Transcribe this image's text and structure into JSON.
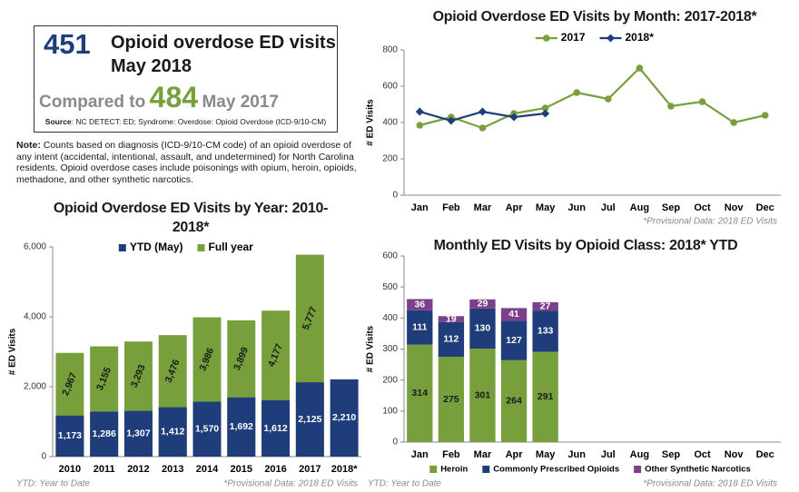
{
  "header": {
    "count": "451",
    "headline": "Opioid overdose ED visits",
    "period": "May 2018",
    "compared": "Compared to",
    "prior_count": "484",
    "prior_period": "May 2017",
    "source_label": "Source",
    "source": ": NC DETECT: ED; Syndrome: Overdose: Opioid Overdose (ICD-9/10-CM)"
  },
  "note": {
    "label": "Note:",
    "text": " Counts based on diagnosis (ICD-9/10-CM code) of an opioid overdose of any intent (accidental, intentional, assault, and undetermined) for North Carolina residents. Opioid overdose cases include poisonings with opium, heroin, opioids, methadone, and other synthetic narcotics."
  },
  "chart_data": [
    {
      "type": "bar",
      "barmode": "overlay",
      "title": "Opioid Overdose ED Visits by Year: 2010-2018*",
      "y_label": "# ED Visits",
      "legend": "top",
      "categories": [
        "2010",
        "2011",
        "2012",
        "2013",
        "2014",
        "2015",
        "2016",
        "2017",
        "2018*"
      ],
      "series": [
        {
          "name": "YTD (May)",
          "color": "#1f3d7a",
          "label_color": "#ffffff",
          "values": [
            1173,
            1286,
            1307,
            1412,
            1570,
            1692,
            1612,
            2125,
            2210
          ],
          "value_labels": [
            "1,173",
            "1,286",
            "1,307",
            "1,412",
            "1,570",
            "1,692",
            "1,612",
            "2,125",
            "2,210"
          ]
        },
        {
          "name": "Full year",
          "color": "#77a03c",
          "label_color": "#1a1a1a",
          "values": [
            2967,
            3155,
            3293,
            3476,
            3986,
            3899,
            4177,
            5777,
            null
          ],
          "value_labels": [
            "2,967",
            "3,155",
            "3,293",
            "3,476",
            "3,986",
            "3,899",
            "4,177",
            "5,777",
            null
          ]
        }
      ],
      "ylim": [
        0,
        6000
      ],
      "yticks": [
        0,
        {
          "value": 2000,
          "label": "2,000"
        },
        {
          "value": 4000,
          "label": "4,000"
        },
        {
          "value": 6000,
          "label": "6,000"
        }
      ],
      "footnotes": [
        "YTD: Year to Date",
        "*Provisional Data: 2018 ED Visits"
      ]
    },
    {
      "type": "line",
      "title": "Opioid Overdose ED Visits by Month: 2017-2018*",
      "y_label": "# ED Visits",
      "legend": "top",
      "categories": [
        "Jan",
        "Feb",
        "Mar",
        "Apr",
        "May",
        "Jun",
        "Jul",
        "Aug",
        "Sep",
        "Oct",
        "Nov",
        "Dec"
      ],
      "series": [
        {
          "name": "2017",
          "color": "#77a03c",
          "marker": "circle",
          "values": [
            385,
            430,
            370,
            450,
            480,
            565,
            530,
            700,
            490,
            515,
            400,
            440
          ]
        },
        {
          "name": "2018*",
          "color": "#1f3d7a",
          "marker": "diamond",
          "values": [
            460,
            410,
            460,
            430,
            450,
            null,
            null,
            null,
            null,
            null,
            null,
            null
          ]
        }
      ],
      "ylim": [
        0,
        800
      ],
      "yticks": [
        0,
        200,
        400,
        600,
        800
      ],
      "footnotes": [
        "*Provisional Data: 2018 ED Visits"
      ]
    },
    {
      "type": "bar",
      "barmode": "stack",
      "title": "Monthly ED Visits by Opioid Class: 2018* YTD",
      "y_label": "# ED Visits",
      "legend": "bottom",
      "categories": [
        "Jan",
        "Feb",
        "Mar",
        "Apr",
        "May",
        "Jun",
        "Jul",
        "Aug",
        "Sep",
        "Oct",
        "Nov",
        "Dec"
      ],
      "series": [
        {
          "name": "Heroin",
          "color": "#77a03c",
          "label_color": "#1a1a1a",
          "values": [
            314,
            275,
            301,
            264,
            291,
            null,
            null,
            null,
            null,
            null,
            null,
            null
          ]
        },
        {
          "name": "Commonly Prescribed Opioids",
          "color": "#1f3d7a",
          "label_color": "#ffffff",
          "values": [
            111,
            112,
            130,
            127,
            133,
            null,
            null,
            null,
            null,
            null,
            null,
            null
          ]
        },
        {
          "name": "Other Synthetic Narcotics",
          "color": "#7b3f8c",
          "label_color": "#ffffff",
          "values": [
            36,
            19,
            29,
            41,
            27,
            null,
            null,
            null,
            null,
            null,
            null,
            null
          ]
        }
      ],
      "ylim": [
        0,
        600
      ],
      "yticks": [
        0,
        100,
        200,
        300,
        400,
        500,
        600
      ],
      "footnotes": [
        "YTD: Year to Date",
        "*Provisional Data: 2018 ED Visits"
      ]
    }
  ]
}
